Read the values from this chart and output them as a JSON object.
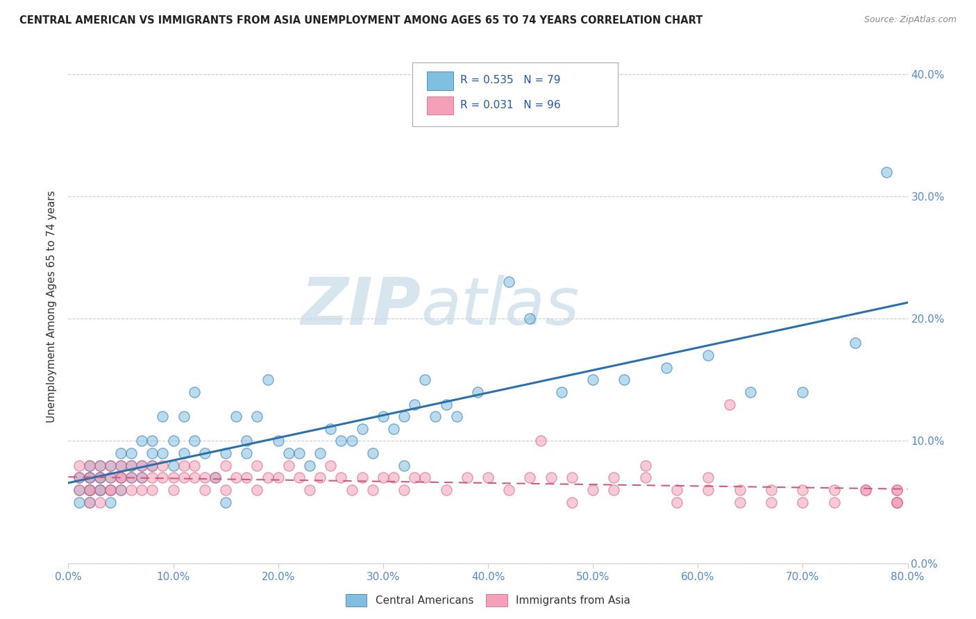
{
  "title": "CENTRAL AMERICAN VS IMMIGRANTS FROM ASIA UNEMPLOYMENT AMONG AGES 65 TO 74 YEARS CORRELATION CHART",
  "source": "Source: ZipAtlas.com",
  "ylabel": "Unemployment Among Ages 65 to 74 years",
  "blue_color": "#7fbfdf",
  "pink_color": "#f4a0b8",
  "blue_line_color": "#2c6fad",
  "pink_line_color": "#d05a7a",
  "blue_R": 0.535,
  "blue_N": 79,
  "pink_R": 0.031,
  "pink_N": 96,
  "legend_labels": [
    "Central Americans",
    "Immigrants from Asia"
  ],
  "watermark_zip": "ZIP",
  "watermark_atlas": "atlas",
  "xlim": [
    0.0,
    0.8
  ],
  "ylim": [
    0.0,
    0.42
  ],
  "yticks": [
    0.0,
    0.1,
    0.2,
    0.3,
    0.4
  ],
  "xticks": [
    0.0,
    0.1,
    0.2,
    0.3,
    0.4,
    0.5,
    0.6,
    0.7,
    0.8
  ],
  "blue_x": [
    0.01,
    0.01,
    0.01,
    0.02,
    0.02,
    0.02,
    0.02,
    0.02,
    0.02,
    0.03,
    0.03,
    0.03,
    0.03,
    0.03,
    0.04,
    0.04,
    0.04,
    0.04,
    0.05,
    0.05,
    0.05,
    0.05,
    0.06,
    0.06,
    0.06,
    0.07,
    0.07,
    0.07,
    0.08,
    0.08,
    0.08,
    0.09,
    0.09,
    0.1,
    0.1,
    0.11,
    0.11,
    0.12,
    0.12,
    0.13,
    0.14,
    0.15,
    0.15,
    0.16,
    0.17,
    0.17,
    0.18,
    0.19,
    0.2,
    0.21,
    0.22,
    0.23,
    0.24,
    0.25,
    0.26,
    0.27,
    0.28,
    0.29,
    0.3,
    0.31,
    0.32,
    0.33,
    0.35,
    0.37,
    0.39,
    0.42,
    0.44,
    0.47,
    0.5,
    0.53,
    0.57,
    0.61,
    0.65,
    0.7,
    0.75,
    0.32,
    0.34,
    0.36,
    0.78
  ],
  "blue_y": [
    0.07,
    0.06,
    0.05,
    0.07,
    0.06,
    0.07,
    0.06,
    0.08,
    0.05,
    0.07,
    0.06,
    0.07,
    0.08,
    0.06,
    0.07,
    0.06,
    0.08,
    0.05,
    0.08,
    0.07,
    0.09,
    0.06,
    0.09,
    0.07,
    0.08,
    0.1,
    0.08,
    0.07,
    0.09,
    0.08,
    0.1,
    0.12,
    0.09,
    0.08,
    0.1,
    0.12,
    0.09,
    0.14,
    0.1,
    0.09,
    0.07,
    0.05,
    0.09,
    0.12,
    0.1,
    0.09,
    0.12,
    0.15,
    0.1,
    0.09,
    0.09,
    0.08,
    0.09,
    0.11,
    0.1,
    0.1,
    0.11,
    0.09,
    0.12,
    0.11,
    0.12,
    0.13,
    0.12,
    0.12,
    0.14,
    0.23,
    0.2,
    0.14,
    0.15,
    0.15,
    0.16,
    0.17,
    0.14,
    0.14,
    0.18,
    0.08,
    0.15,
    0.13,
    0.32
  ],
  "pink_x": [
    0.01,
    0.01,
    0.01,
    0.02,
    0.02,
    0.02,
    0.02,
    0.02,
    0.03,
    0.03,
    0.03,
    0.03,
    0.04,
    0.04,
    0.04,
    0.04,
    0.05,
    0.05,
    0.05,
    0.05,
    0.06,
    0.06,
    0.06,
    0.07,
    0.07,
    0.07,
    0.08,
    0.08,
    0.08,
    0.09,
    0.09,
    0.1,
    0.1,
    0.11,
    0.11,
    0.12,
    0.12,
    0.13,
    0.13,
    0.14,
    0.15,
    0.15,
    0.16,
    0.17,
    0.18,
    0.18,
    0.19,
    0.2,
    0.21,
    0.22,
    0.23,
    0.24,
    0.25,
    0.26,
    0.27,
    0.28,
    0.29,
    0.3,
    0.31,
    0.32,
    0.33,
    0.34,
    0.36,
    0.38,
    0.4,
    0.42,
    0.44,
    0.46,
    0.48,
    0.5,
    0.52,
    0.55,
    0.58,
    0.61,
    0.64,
    0.67,
    0.7,
    0.73,
    0.76,
    0.79,
    0.63,
    0.45,
    0.48,
    0.52,
    0.55,
    0.58,
    0.61,
    0.64,
    0.67,
    0.7,
    0.73,
    0.76,
    0.79,
    0.79,
    0.79,
    0.79
  ],
  "pink_y": [
    0.06,
    0.07,
    0.08,
    0.05,
    0.06,
    0.07,
    0.08,
    0.06,
    0.05,
    0.06,
    0.07,
    0.08,
    0.06,
    0.07,
    0.08,
    0.06,
    0.07,
    0.06,
    0.08,
    0.07,
    0.07,
    0.08,
    0.06,
    0.07,
    0.08,
    0.06,
    0.07,
    0.08,
    0.06,
    0.07,
    0.08,
    0.07,
    0.06,
    0.08,
    0.07,
    0.07,
    0.08,
    0.07,
    0.06,
    0.07,
    0.08,
    0.06,
    0.07,
    0.07,
    0.08,
    0.06,
    0.07,
    0.07,
    0.08,
    0.07,
    0.06,
    0.07,
    0.08,
    0.07,
    0.06,
    0.07,
    0.06,
    0.07,
    0.07,
    0.06,
    0.07,
    0.07,
    0.06,
    0.07,
    0.07,
    0.06,
    0.07,
    0.07,
    0.07,
    0.06,
    0.07,
    0.07,
    0.06,
    0.07,
    0.06,
    0.06,
    0.06,
    0.06,
    0.06,
    0.06,
    0.13,
    0.1,
    0.05,
    0.06,
    0.08,
    0.05,
    0.06,
    0.05,
    0.05,
    0.05,
    0.05,
    0.06,
    0.05,
    0.06,
    0.05,
    0.05
  ]
}
